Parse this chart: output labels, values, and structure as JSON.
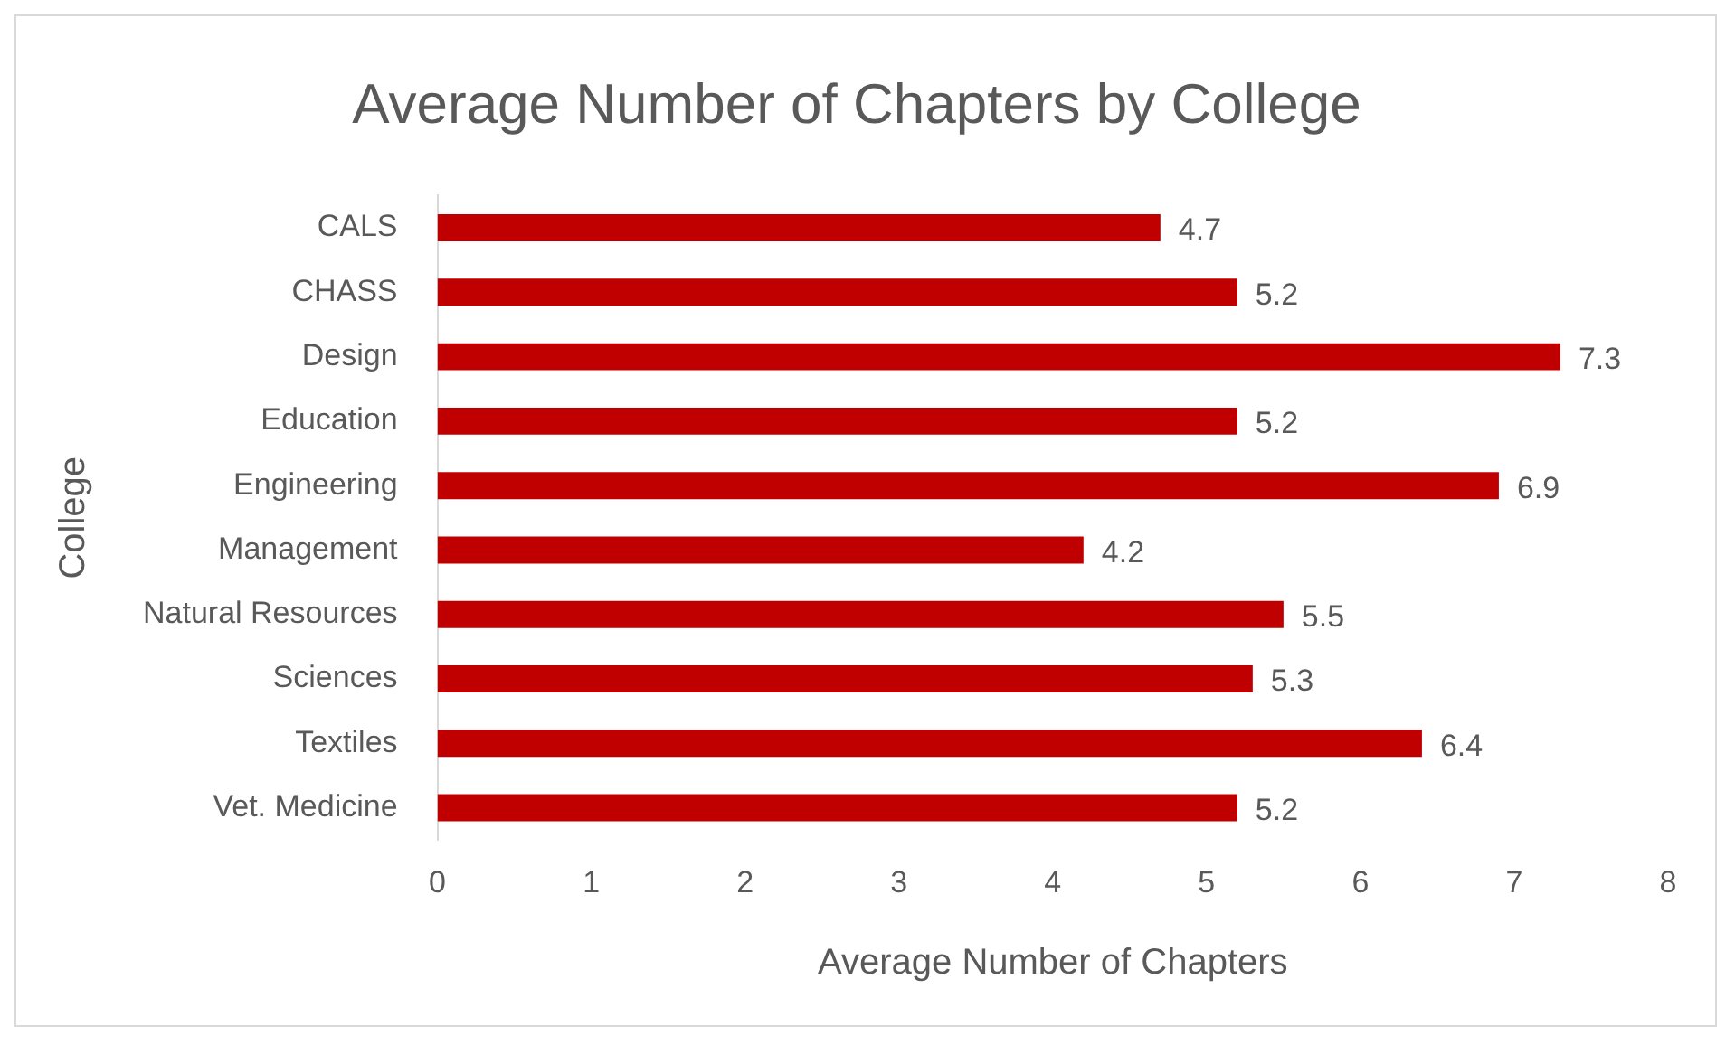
{
  "chart_data": {
    "type": "bar",
    "orientation": "horizontal",
    "title": "Average Number of Chapters by College",
    "xlabel": "Average Number of Chapters",
    "ylabel": "College",
    "categories": [
      "CALS",
      "CHASS",
      "Design",
      "Education",
      "Engineering",
      "Management",
      "Natural Resources",
      "Sciences",
      "Textiles",
      "Vet. Medicine"
    ],
    "values": [
      4.7,
      5.2,
      7.3,
      5.2,
      6.9,
      4.2,
      5.5,
      5.3,
      6.4,
      5.2
    ],
    "color": "#c00000",
    "xlim": [
      0,
      8
    ],
    "xticks": [
      0,
      1,
      2,
      3,
      4,
      5,
      6,
      7,
      8
    ],
    "grid": false,
    "data_labels": true,
    "legend": false
  }
}
